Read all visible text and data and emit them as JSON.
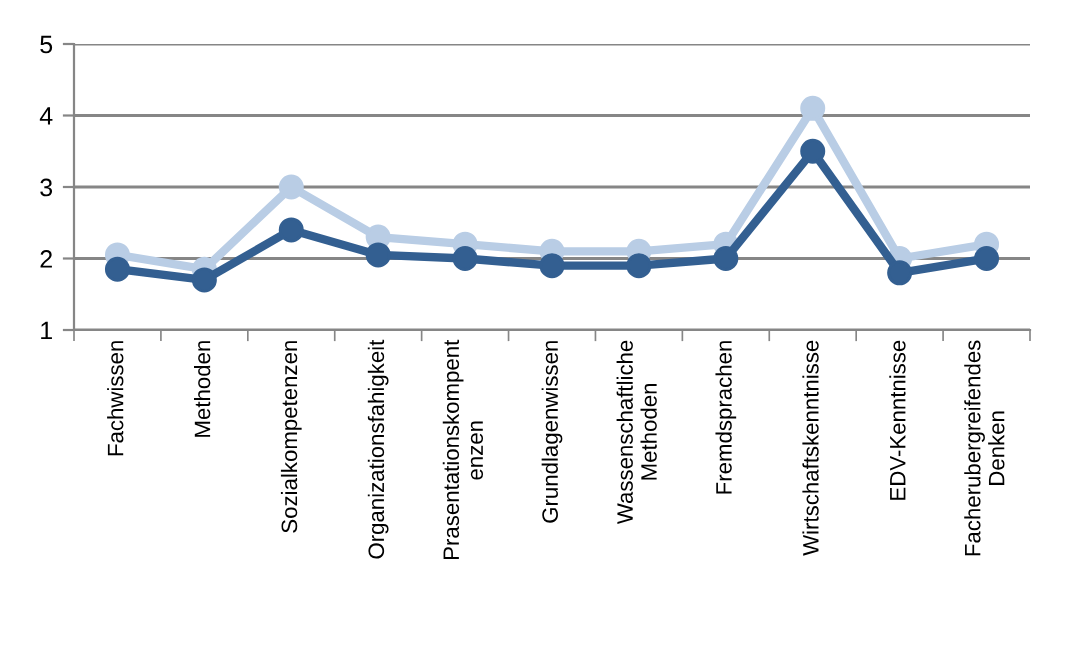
{
  "chart_data": {
    "type": "line",
    "categories": [
      "Fachwissen",
      "Methoden",
      "Sozialkompetenzen",
      "Organizationsfahigkeit",
      "Prasentationskompent\nenzen",
      "Grundlagenwissen",
      "Wassenschaftliche\nMethoden",
      "Fremdsprachen",
      "Wirtschaftskenntnisse",
      "EDV-Kenntnisse",
      "Facherubergreifendes\nDenken"
    ],
    "series": [
      {
        "color": "#b9cde5",
        "values": [
          2.05,
          1.85,
          3.0,
          2.3,
          2.2,
          2.1,
          2.1,
          2.2,
          4.1,
          2.0,
          2.2
        ]
      },
      {
        "color": "#335f91",
        "values": [
          1.85,
          1.7,
          2.4,
          2.05,
          2.0,
          1.9,
          1.9,
          2.0,
          3.5,
          1.8,
          2.0
        ]
      }
    ],
    "ylim": [
      1,
      5
    ],
    "yticks": [
      1,
      2,
      3,
      4,
      5
    ],
    "grid": "y",
    "marker": "circle",
    "line_style": "solid"
  }
}
